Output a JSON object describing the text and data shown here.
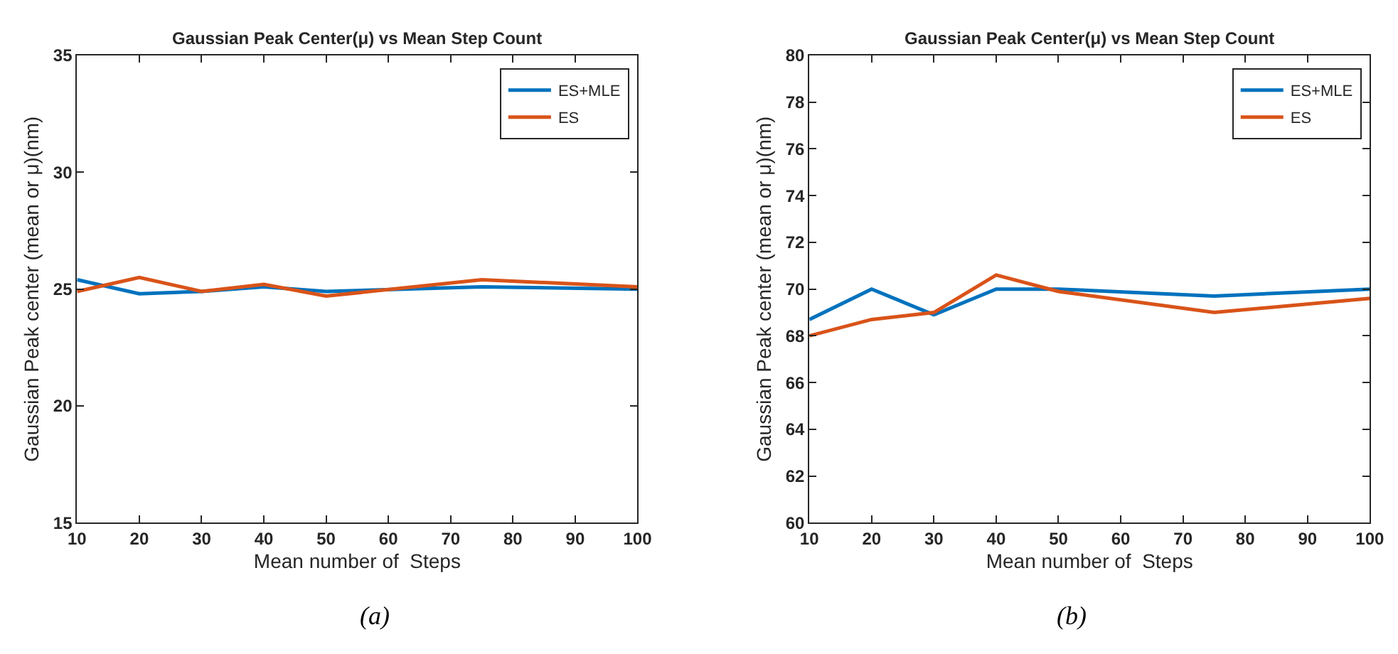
{
  "chart_data": [
    {
      "type": "line",
      "title": "Gaussian Peak Center(μ) vs Mean Step Count",
      "xlabel": "Mean number of  Steps",
      "ylabel": "Gaussian Peak center (mean or μ)(nm)",
      "x": [
        10,
        20,
        30,
        40,
        50,
        75,
        100
      ],
      "xlim": [
        10,
        100
      ],
      "xticks": [
        10,
        20,
        30,
        40,
        50,
        60,
        70,
        80,
        90,
        100
      ],
      "ylim": [
        15,
        35
      ],
      "yticks": [
        15,
        20,
        25,
        30,
        35
      ],
      "legend": "top right",
      "annotations": [
        "(a)"
      ],
      "series": [
        {
          "name": "ES+MLE",
          "color": "#0072bd",
          "values": [
            25.4,
            24.8,
            24.9,
            25.1,
            24.9,
            25.1,
            25.0
          ]
        },
        {
          "name": "ES",
          "color": "#d95319",
          "values": [
            24.9,
            25.5,
            24.9,
            25.2,
            24.7,
            25.4,
            25.1
          ]
        }
      ]
    },
    {
      "type": "line",
      "title": "Gaussian Peak Center(μ) vs Mean Step Count",
      "xlabel": "Mean number of  Steps",
      "ylabel": "Gaussian Peak center (mean or μ)(nm)",
      "x": [
        10,
        20,
        30,
        40,
        50,
        75,
        100
      ],
      "xlim": [
        10,
        100
      ],
      "xticks": [
        10,
        20,
        30,
        40,
        50,
        60,
        70,
        80,
        90,
        100
      ],
      "ylim": [
        60,
        80
      ],
      "yticks": [
        60,
        62,
        64,
        66,
        68,
        70,
        72,
        74,
        76,
        78,
        80
      ],
      "legend": "top right",
      "annotations": [
        "(b)"
      ],
      "series": [
        {
          "name": "ES+MLE",
          "color": "#0072bd",
          "values": [
            68.7,
            70.0,
            68.9,
            70.0,
            70.0,
            69.7,
            70.0
          ]
        },
        {
          "name": "ES",
          "color": "#d95319",
          "values": [
            68.0,
            68.7,
            69.0,
            70.6,
            69.9,
            69.0,
            69.6
          ]
        }
      ]
    }
  ]
}
